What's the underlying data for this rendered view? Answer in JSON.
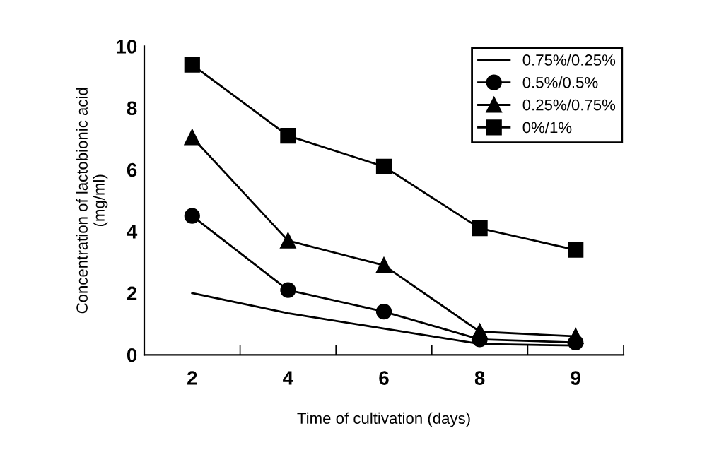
{
  "chart_data": {
    "type": "line",
    "xlabel": "Time of cultivation (days)",
    "ylabel": "Concentration of lactobionic acid\n(mg/ml)",
    "categories": [
      "2",
      "4",
      "6",
      "8",
      "9"
    ],
    "series": [
      {
        "name": "0.75%/0.25%",
        "color": "#000000",
        "marker": "none",
        "values": [
          2.0,
          1.35,
          0.85,
          0.35,
          0.3
        ]
      },
      {
        "name": "0.5%/0.5%",
        "color": "#000000",
        "marker": "circle",
        "values": [
          4.5,
          2.1,
          1.4,
          0.5,
          0.4
        ]
      },
      {
        "name": "0.25%/0.75%",
        "color": "#000000",
        "marker": "triangle",
        "values": [
          7.05,
          3.7,
          2.9,
          0.75,
          0.6
        ]
      },
      {
        "name": "0%/1%",
        "color": "#000000",
        "marker": "square",
        "values": [
          9.4,
          7.1,
          6.1,
          4.1,
          3.4
        ]
      }
    ],
    "ylim": [
      0,
      10
    ],
    "yticks": [
      0,
      2,
      4,
      6,
      8,
      10
    ],
    "grid": false,
    "legend": "top right",
    "line_style": "solid"
  }
}
